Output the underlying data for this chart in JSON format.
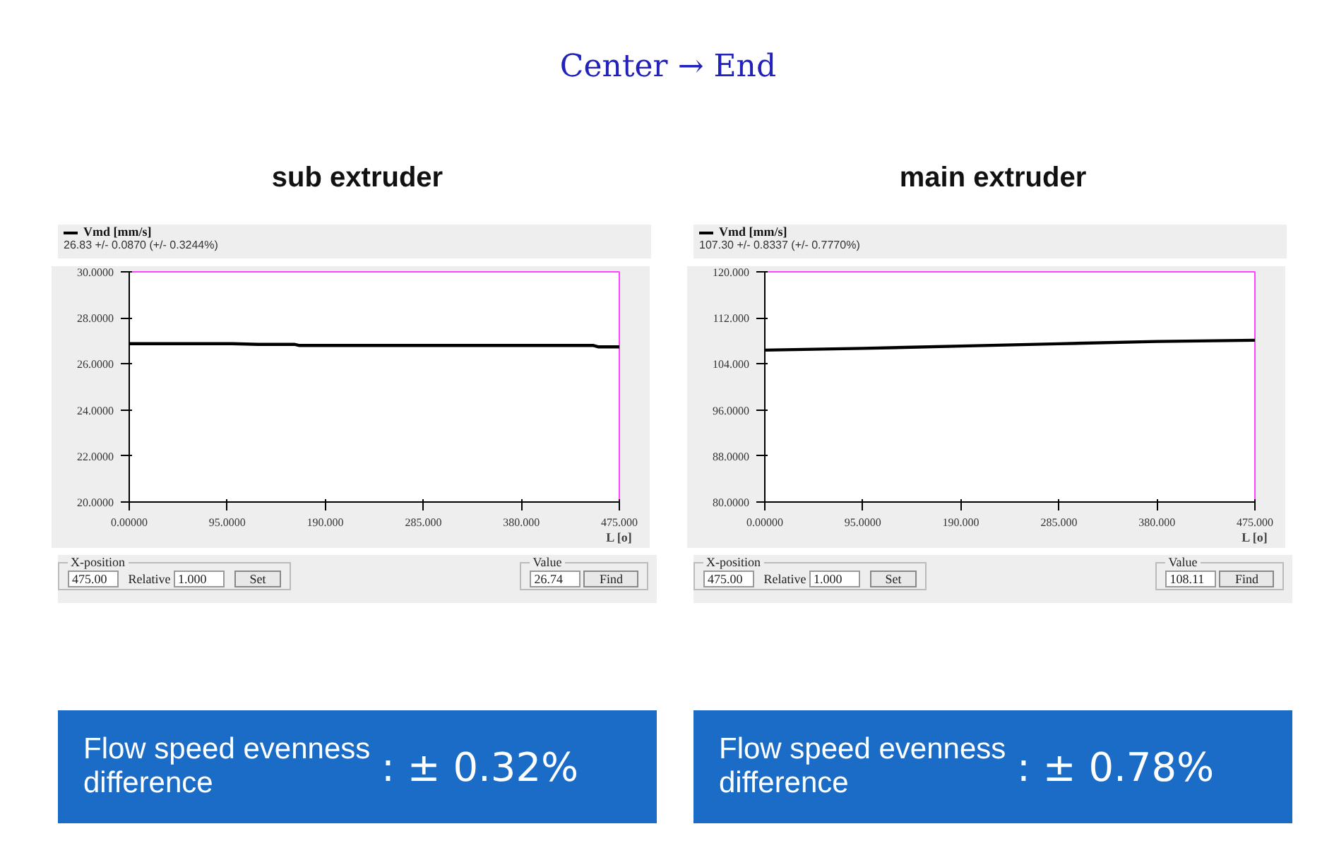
{
  "chart_data": [
    {
      "type": "line",
      "title": "sub extruder",
      "subtitle": "26.83 +/- 0.0870  (+/- 0.3244%)",
      "xlabel": "L [o]",
      "series": [
        {
          "name": "Vmd [mm/s]",
          "color": "#000000",
          "x": [
            0,
            100,
            125,
            160,
            165,
            450,
            455,
            475
          ],
          "values": [
            26.88,
            26.88,
            26.85,
            26.85,
            26.8,
            26.8,
            26.74,
            26.74
          ]
        }
      ],
      "xlim": [
        0,
        475
      ],
      "xticks": [
        {
          "value": 0,
          "label": "0.00000"
        },
        {
          "value": 95,
          "label": "95.0000"
        },
        {
          "value": 190,
          "label": "190.000"
        },
        {
          "value": 285,
          "label": "285.000"
        },
        {
          "value": 380,
          "label": "380.000"
        },
        {
          "value": 475,
          "label": "475.000"
        }
      ],
      "ylim": [
        20,
        30
      ],
      "yticks": [
        {
          "value": 20,
          "label": "20.0000"
        },
        {
          "value": 22,
          "label": "22.0000"
        },
        {
          "value": 24,
          "label": "24.0000"
        },
        {
          "value": 26,
          "label": "26.0000"
        },
        {
          "value": 28,
          "label": "28.0000"
        },
        {
          "value": 30,
          "label": "30.0000"
        }
      ],
      "grid": false,
      "legend": "top left",
      "annotations": [
        "X-position",
        "475.00",
        "Relative",
        "1.000",
        "Set",
        "Value",
        "26.74",
        "Find",
        "Flow speed evenness difference",
        ": ± 0.32%",
        "Center → End"
      ]
    },
    {
      "type": "line",
      "title": "main extruder",
      "subtitle": "107.30 +/- 0.8337  (+/- 0.7770%)",
      "xlabel": "L [o]",
      "series": [
        {
          "name": "Vmd [mm/s]",
          "color": "#000000",
          "x": [
            0,
            95,
            190,
            285,
            380,
            475
          ],
          "values": [
            106.4,
            106.7,
            107.1,
            107.5,
            107.9,
            108.11
          ]
        }
      ],
      "xlim": [
        0,
        475
      ],
      "xticks": [
        {
          "value": 0,
          "label": "0.00000"
        },
        {
          "value": 95,
          "label": "95.0000"
        },
        {
          "value": 190,
          "label": "190.000"
        },
        {
          "value": 285,
          "label": "285.000"
        },
        {
          "value": 380,
          "label": "380.000"
        },
        {
          "value": 475,
          "label": "475.000"
        }
      ],
      "ylim": [
        80,
        120
      ],
      "yticks": [
        {
          "value": 80,
          "label": "80.0000"
        },
        {
          "value": 88,
          "label": "88.0000"
        },
        {
          "value": 96,
          "label": "96.0000"
        },
        {
          "value": 104,
          "label": "104.000"
        },
        {
          "value": 112,
          "label": "112.000"
        },
        {
          "value": 120,
          "label": "120.000"
        }
      ],
      "grid": false,
      "legend": "top left",
      "annotations": [
        "X-position",
        "475.00",
        "Relative",
        "1.000",
        "Set",
        "Value",
        "108.11",
        "Find",
        "Flow speed evenness difference",
        ": ± 0.78%"
      ]
    }
  ]
}
